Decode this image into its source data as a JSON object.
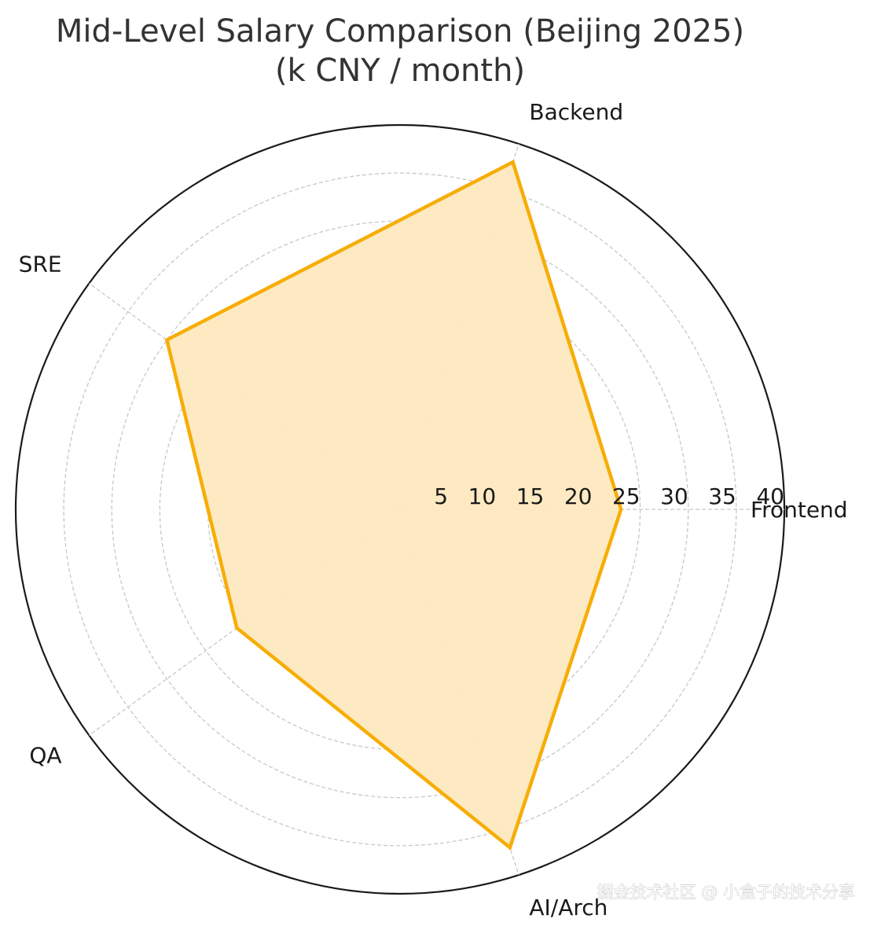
{
  "chart_data": {
    "type": "radar",
    "title": "Mid-Level Salary Comparison (Beijing 2025)",
    "subtitle": "(k CNY / month)",
    "categories": [
      "Frontend",
      "Backend",
      "SRE",
      "QA",
      "AI/Arch"
    ],
    "series": [
      {
        "values": [
          23,
          38,
          30,
          21,
          37
        ]
      }
    ],
    "rlim": [
      0,
      40
    ],
    "r_ticks": [
      5,
      10,
      15,
      20,
      25,
      30,
      35,
      40
    ],
    "grid": true,
    "colors": {
      "line": "#f7ad07",
      "fill": "#fde9bf",
      "grid": "#c8c8c8",
      "outline": "#1a1a1a"
    }
  },
  "watermark": "掘金技术社区 @ 小盒子的技术分享"
}
